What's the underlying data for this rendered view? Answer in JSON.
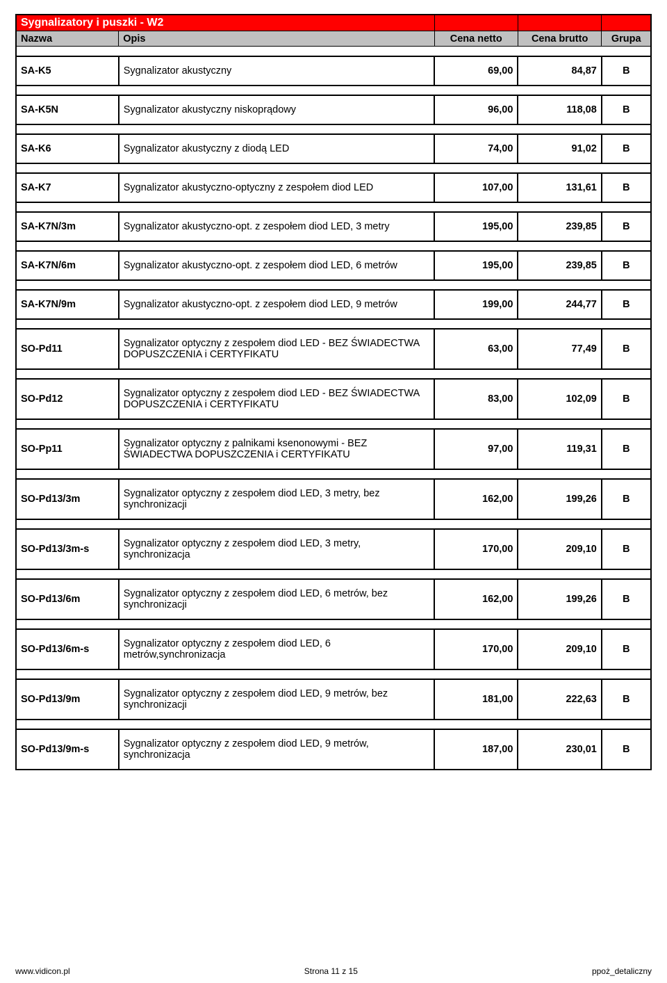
{
  "title": "Sygnalizatory i puszki   -   W2",
  "headers": {
    "name": "Nazwa",
    "desc": "Opis",
    "net": "Cena netto",
    "gross": "Cena brutto",
    "group": "Grupa"
  },
  "colors": {
    "title_bg": "#ff0000",
    "title_fg": "#ffffff",
    "header_bg": "#c0c0c0",
    "border": "#000000"
  },
  "rows": [
    {
      "name": "SA-K5",
      "desc": "Sygnalizator akustyczny",
      "net": "69,00",
      "gross": "84,87",
      "group": "B"
    },
    {
      "name": "SA-K5N",
      "desc": "Sygnalizator akustyczny niskoprądowy",
      "net": "96,00",
      "gross": "118,08",
      "group": "B"
    },
    {
      "name": "SA-K6",
      "desc": "Sygnalizator akustyczny z diodą LED",
      "net": "74,00",
      "gross": "91,02",
      "group": "B"
    },
    {
      "name": "SA-K7",
      "desc": "Sygnalizator akustyczno-optyczny z zespołem diod LED",
      "net": "107,00",
      "gross": "131,61",
      "group": "B"
    },
    {
      "name": "SA-K7N/3m",
      "desc": "Sygnalizator akustyczno-opt. z zespołem diod LED, 3 metry",
      "net": "195,00",
      "gross": "239,85",
      "group": "B"
    },
    {
      "name": "SA-K7N/6m",
      "desc": "Sygnalizator akustyczno-opt. z zespołem diod LED, 6 metrów",
      "net": "195,00",
      "gross": "239,85",
      "group": "B"
    },
    {
      "name": "SA-K7N/9m",
      "desc": "Sygnalizator akustyczno-opt. z zespołem diod LED, 9 metrów",
      "net": "199,00",
      "gross": "244,77",
      "group": "B"
    },
    {
      "name": "SO-Pd11",
      "desc": "Sygnalizator optyczny z zespołem diod LED - BEZ ŚWIADECTWA DOPUSZCZENIA i CERTYFIKATU",
      "net": "63,00",
      "gross": "77,49",
      "group": "B"
    },
    {
      "name": "SO-Pd12",
      "desc": "Sygnalizator optyczny z zespołem diod LED - BEZ ŚWIADECTWA DOPUSZCZENIA i CERTYFIKATU",
      "net": "83,00",
      "gross": "102,09",
      "group": "B"
    },
    {
      "name": "SO-Pp11",
      "desc": "Sygnalizator optyczny z palnikami ksenonowymi  - BEZ ŚWIADECTWA DOPUSZCZENIA i CERTYFIKATU",
      "net": "97,00",
      "gross": "119,31",
      "group": "B"
    },
    {
      "name": "SO-Pd13/3m",
      "desc": "Sygnalizator optyczny z zespołem diod LED, 3 metry, bez synchronizacji",
      "net": "162,00",
      "gross": "199,26",
      "group": "B"
    },
    {
      "name": "SO-Pd13/3m-s",
      "desc": "Sygnalizator optyczny z zespołem diod LED, 3 metry, synchronizacja",
      "net": "170,00",
      "gross": "209,10",
      "group": "B"
    },
    {
      "name": "SO-Pd13/6m",
      "desc": "Sygnalizator optyczny z zespołem diod LED, 6 metrów, bez synchronizacji",
      "net": "162,00",
      "gross": "199,26",
      "group": "B"
    },
    {
      "name": "SO-Pd13/6m-s",
      "desc": "Sygnalizator optyczny z zespołem diod LED, 6 metrów,synchronizacja",
      "net": "170,00",
      "gross": "209,10",
      "group": "B"
    },
    {
      "name": "SO-Pd13/9m",
      "desc": "Sygnalizator optyczny z zespołem diod LED, 9 metrów, bez synchronizacji",
      "net": "181,00",
      "gross": "222,63",
      "group": "B"
    },
    {
      "name": "SO-Pd13/9m-s",
      "desc": "Sygnalizator optyczny z zespołem diod LED, 9 metrów, synchronizacja",
      "net": "187,00",
      "gross": "230,01",
      "group": "B"
    }
  ],
  "footer": {
    "left": "www.vidicon.pl",
    "center": "Strona 11 z 15",
    "right": "ppoż_detaliczny"
  }
}
